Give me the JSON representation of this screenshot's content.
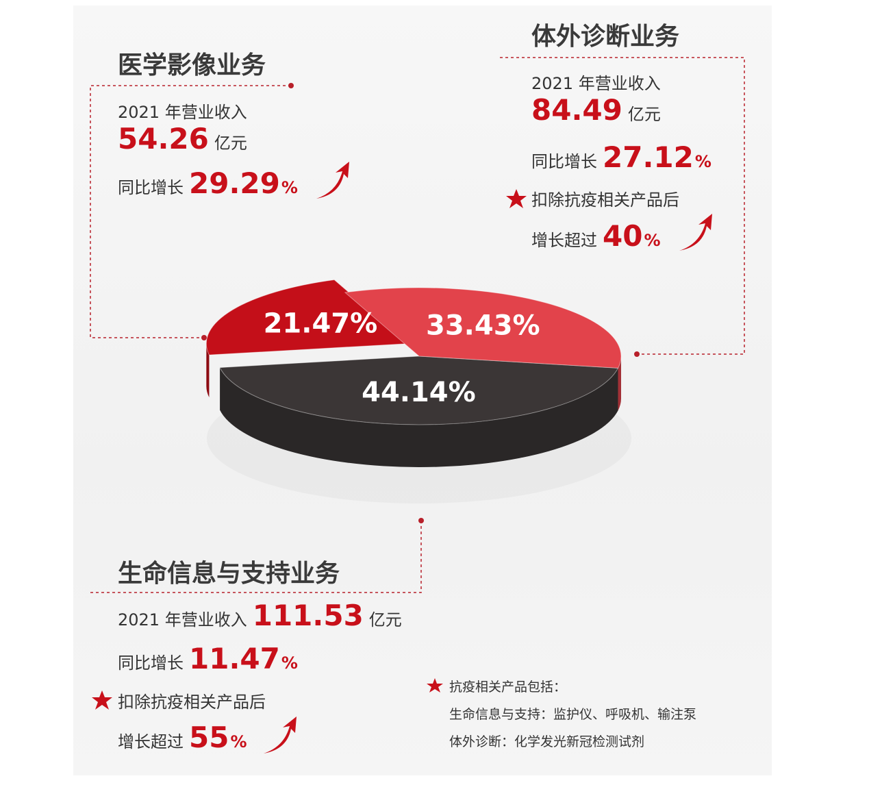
{
  "chart_data": {
    "type": "pie",
    "categories": [
      "医学影像业务",
      "体外诊断业务",
      "生命信息与支持业务"
    ],
    "values": [
      21.47,
      33.43,
      44.14
    ],
    "value_labels": [
      "21.47%",
      "33.43%",
      "44.14%"
    ],
    "colors": [
      "#c40f19",
      "#e2434b",
      "#3b3636"
    ]
  },
  "segments": [
    {
      "revenue_label": "2021 年营业收入",
      "revenue": "54.26",
      "revenue_unit": "亿元",
      "growth_label": "同比增长",
      "growth": "29.29",
      "growth_unit": "%"
    },
    {
      "revenue_label": "2021 年营业收入",
      "revenue": "84.49",
      "revenue_unit": "亿元",
      "growth_label": "同比增长",
      "growth": "27.12",
      "growth_unit": "%",
      "note": "扣除抗疫相关产品后",
      "note_growth_label": "增长超过",
      "note_growth": "40",
      "note_growth_unit": "%"
    },
    {
      "revenue_label": "2021 年营业收入",
      "revenue": "111.53",
      "revenue_unit": "亿元",
      "growth_label": "同比增长",
      "growth": "11.47",
      "growth_unit": "%",
      "note": "扣除抗疫相关产品后",
      "note_growth_label": "增长超过",
      "note_growth": "55",
      "note_growth_unit": "%"
    }
  ],
  "footnote": {
    "title": "抗疫相关产品包括：",
    "lines": [
      "生命信息与支持：监护仪、呼吸机、输注泵",
      "体外诊断：化学发光新冠检测试剂"
    ]
  }
}
